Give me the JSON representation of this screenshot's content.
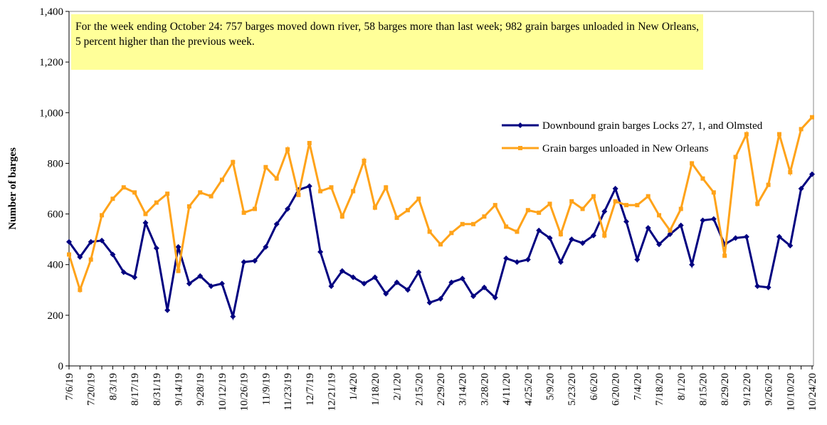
{
  "chart_data": {
    "type": "line",
    "annotation": "For the week ending October 24: 757 barges moved down river, 58 barges more than last week; 982 grain barges unloaded in New Orleans, 5 percent higher than the previous week.",
    "ylabel": "Number of barges",
    "categories": [
      "7/6/19",
      null,
      "7/20/19",
      null,
      "8/3/19",
      null,
      "8/17/19",
      null,
      "8/31/19",
      null,
      "9/14/19",
      null,
      "9/28/19",
      null,
      "10/12/19",
      null,
      "10/26/19",
      null,
      "11/9/19",
      null,
      "11/23/19",
      null,
      "12/7/19",
      null,
      "12/21/19",
      null,
      "1/4/20",
      null,
      "1/18/20",
      null,
      "2/1/20",
      null,
      "2/15/20",
      null,
      "2/29/20",
      null,
      "3/14/20",
      null,
      "3/28/20",
      null,
      "4/11/20",
      null,
      "4/25/20",
      null,
      "5/9/20",
      null,
      "5/23/20",
      null,
      "6/6/20",
      null,
      "6/20/20",
      null,
      "7/4/20",
      null,
      "7/18/20",
      null,
      "8/1/20",
      null,
      "8/15/20",
      null,
      "8/29/20",
      null,
      "9/12/20",
      null,
      "9/26/20",
      null,
      "10/10/20",
      null,
      "10/24/20"
    ],
    "series": [
      {
        "name": "Downbound grain barges Locks 27, 1, and Olmsted",
        "color": "#000080",
        "marker": "diamond",
        "values": [
          490,
          430,
          490,
          495,
          440,
          370,
          350,
          565,
          465,
          220,
          470,
          325,
          355,
          315,
          325,
          195,
          410,
          415,
          470,
          560,
          620,
          695,
          710,
          450,
          315,
          375,
          350,
          325,
          350,
          285,
          330,
          300,
          370,
          250,
          265,
          330,
          345,
          275,
          310,
          270,
          425,
          410,
          420,
          535,
          505,
          410,
          500,
          485,
          515,
          610,
          700,
          570,
          420,
          545,
          480,
          520,
          555,
          400,
          575,
          580,
          480,
          505,
          510,
          315,
          310,
          510,
          475,
          700,
          757
        ]
      },
      {
        "name": "Grain barges unloaded in New Orleans",
        "color": "#ffa31a",
        "marker": "square",
        "values": [
          440,
          300,
          420,
          595,
          660,
          705,
          685,
          600,
          645,
          680,
          375,
          630,
          685,
          670,
          735,
          805,
          605,
          620,
          785,
          740,
          855,
          675,
          880,
          690,
          705,
          590,
          690,
          810,
          625,
          705,
          585,
          615,
          660,
          530,
          480,
          525,
          560,
          560,
          590,
          635,
          550,
          530,
          615,
          605,
          640,
          520,
          650,
          620,
          670,
          515,
          650,
          635,
          635,
          670,
          595,
          535,
          620,
          800,
          740,
          685,
          435,
          825,
          915,
          640,
          715,
          915,
          765,
          935,
          982
        ]
      }
    ],
    "ylim": [
      0,
      1400
    ],
    "yticks": [
      0,
      200,
      400,
      600,
      800,
      {
        "value": 1000,
        "label": "1,000"
      },
      {
        "value": 1200,
        "label": "1,200"
      },
      {
        "value": 1400,
        "label": "1,400"
      }
    ],
    "grid": false
  }
}
